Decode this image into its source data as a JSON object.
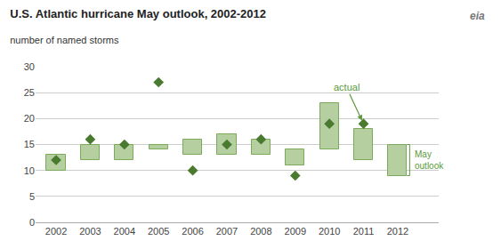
{
  "chart_data": {
    "type": "bar",
    "title": "U.S. Atlantic hurricane May outlook, 2002-2012",
    "subtitle": "number of named storms",
    "x": [
      2002,
      2003,
      2004,
      2005,
      2006,
      2007,
      2008,
      2009,
      2010,
      2011,
      2012
    ],
    "series": [
      {
        "type": "bar",
        "low": [
          10,
          12,
          12,
          14,
          13,
          13,
          13,
          11,
          14,
          12,
          9
        ],
        "high": [
          13,
          15,
          15,
          15,
          16,
          17,
          16,
          14,
          23,
          18,
          15
        ],
        "color": "#b5cfa0"
      },
      {
        "type": "scatter",
        "marker": "diamond",
        "color": "#4a7a30",
        "values": [
          12,
          16,
          15,
          27,
          10,
          15,
          16,
          9,
          19,
          19,
          null
        ]
      }
    ],
    "xlim": [
      2001.4,
      2013.2
    ],
    "xticks": [
      2002,
      2003,
      2004,
      2005,
      2006,
      2007,
      2008,
      2009,
      2010,
      2011,
      2012
    ],
    "ylim": [
      0,
      30
    ],
    "yticks": [
      0,
      5,
      10,
      15,
      20,
      25,
      30
    ],
    "grid": true,
    "annotations": [
      {
        "text": "actual",
        "x": 2011,
        "y": 19,
        "text_x": 2010.5,
        "text_y": 26,
        "color": "#5a9a3a"
      },
      {
        "text": "May\noutlook",
        "x": 2012,
        "low": 9,
        "high": 15,
        "color": "#5a9a3a"
      },
      {
        "text": "eia"
      }
    ]
  }
}
